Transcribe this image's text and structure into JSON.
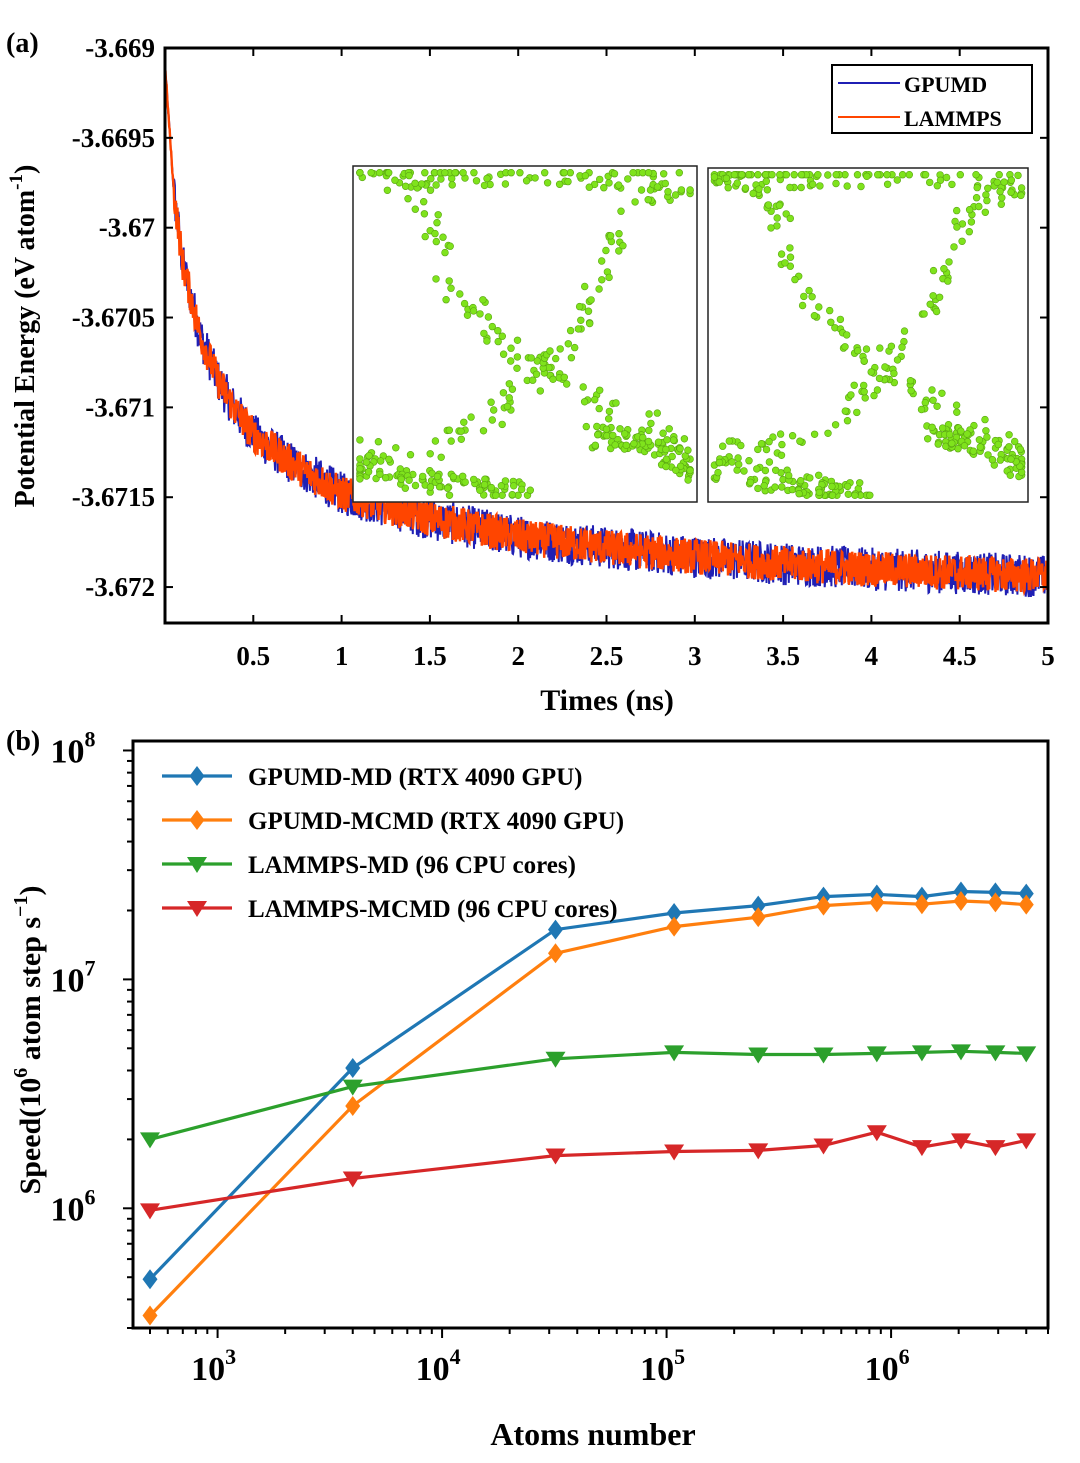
{
  "panels": {
    "a_label": "(a)",
    "b_label": "(b)"
  },
  "chart_data": [
    {
      "type": "line",
      "xlabel": "Times (ns)",
      "ylabel": "Potential Energy  (eV atom",
      "ylabel_sup": "-1",
      "ylabel_close": ")",
      "xlim": [
        0,
        5
      ],
      "ylim": [
        -3.6722,
        -3.669
      ],
      "xticks": [
        0.5,
        1,
        1.5,
        2,
        2.5,
        3,
        3.5,
        4,
        4.5,
        5
      ],
      "xtick_labels": [
        "0.5",
        "1",
        "1.5",
        "2",
        "2.5",
        "3",
        "3.5",
        "4",
        "4.5",
        "5"
      ],
      "yticks": [
        -3.669,
        -3.6695,
        -3.67,
        -3.6705,
        -3.671,
        -3.6715,
        -3.672
      ],
      "ytick_labels": [
        "-3.669",
        "-3.6695",
        "-3.67",
        "-3.6705",
        "-3.671",
        "-3.6715",
        "-3.672"
      ],
      "legend_position": "top-right",
      "series": [
        {
          "name": "GPUMD",
          "color": "#1f1fb4",
          "x": [
            0,
            0.05,
            0.1,
            0.2,
            0.3,
            0.4,
            0.5,
            0.7,
            1.0,
            1.5,
            2.0,
            2.5,
            3.0,
            3.5,
            4.0,
            4.5,
            5.0
          ],
          "values": [
            -3.6691,
            -3.6698,
            -3.6702,
            -3.6706,
            -3.67085,
            -3.67102,
            -3.67115,
            -3.6713,
            -3.67148,
            -3.67162,
            -3.67172,
            -3.67178,
            -3.67183,
            -3.67187,
            -3.6719,
            -3.67192,
            -3.67194
          ],
          "noise": 0.00012
        },
        {
          "name": "LAMMPS",
          "color": "#ff4500",
          "x": [
            0,
            0.05,
            0.1,
            0.2,
            0.3,
            0.4,
            0.5,
            0.7,
            1.0,
            1.5,
            2.0,
            2.5,
            3.0,
            3.5,
            4.0,
            4.5,
            5.0
          ],
          "values": [
            -3.6691,
            -3.6698,
            -3.6702,
            -3.6706,
            -3.67085,
            -3.67102,
            -3.67115,
            -3.6713,
            -3.67148,
            -3.67162,
            -3.67172,
            -3.67178,
            -3.67183,
            -3.67187,
            -3.6719,
            -3.67192,
            -3.67194
          ],
          "noise": 0.0001
        }
      ],
      "inset": {
        "description": "atom snapshots",
        "point_color": "#7fe31c"
      }
    },
    {
      "type": "line",
      "xlabel": "Atoms number",
      "ylabel": "Speed(10",
      "ylabel_sup1": "6",
      "ylabel_mid": " atom step s",
      "ylabel_sup2": "−1",
      "ylabel_close": ")",
      "x_scale": "log",
      "y_scale": "log",
      "xlim": [
        420,
        5000000
      ],
      "ylim": [
        300000,
        110000000
      ],
      "xticks": [
        1000,
        10000,
        100000,
        1000000
      ],
      "xtick_base": "10",
      "xtick_exp": [
        "3",
        "4",
        "5",
        "6"
      ],
      "yticks": [
        1000000,
        10000000,
        100000000
      ],
      "ytick_base": "10",
      "ytick_exp": [
        "6",
        "7",
        "8"
      ],
      "legend_position": "top-left",
      "series": [
        {
          "name": "GPUMD-MD (RTX 4090 GPU)",
          "color": "#1f77b4",
          "marker": "diamond",
          "x": [
            500,
            4000,
            32000,
            108000,
            256000,
            500000,
            864000,
            1372000,
            2048000,
            2916000,
            4000000
          ],
          "values": [
            490000,
            4100000,
            16500000,
            19500000,
            21000000,
            23000000,
            23500000,
            23000000,
            24200000,
            24000000,
            23700000
          ]
        },
        {
          "name": "GPUMD-MCMD (RTX 4090 GPU)",
          "color": "#ff7f0e",
          "marker": "diamond",
          "x": [
            500,
            4000,
            32000,
            108000,
            256000,
            500000,
            864000,
            1372000,
            2048000,
            2916000,
            4000000
          ],
          "values": [
            340000,
            2800000,
            13000000,
            17000000,
            18700000,
            21000000,
            21700000,
            21300000,
            22000000,
            21700000,
            21200000
          ]
        },
        {
          "name": "LAMMPS-MD (96 CPU cores)",
          "color": "#2ca02c",
          "marker": "triangle-down",
          "x": [
            500,
            4000,
            32000,
            108000,
            256000,
            500000,
            864000,
            1372000,
            2048000,
            2916000,
            4000000
          ],
          "values": [
            2000000,
            3400000,
            4500000,
            4800000,
            4700000,
            4700000,
            4750000,
            4800000,
            4850000,
            4800000,
            4750000
          ]
        },
        {
          "name": "LAMMPS-MCMD (96 CPU cores)",
          "color": "#d62728",
          "marker": "triangle-down",
          "x": [
            500,
            4000,
            32000,
            108000,
            256000,
            500000,
            864000,
            1372000,
            2048000,
            2916000,
            4000000
          ],
          "values": [
            980000,
            1350000,
            1700000,
            1770000,
            1790000,
            1880000,
            2150000,
            1850000,
            1980000,
            1850000,
            1980000
          ]
        }
      ]
    }
  ]
}
